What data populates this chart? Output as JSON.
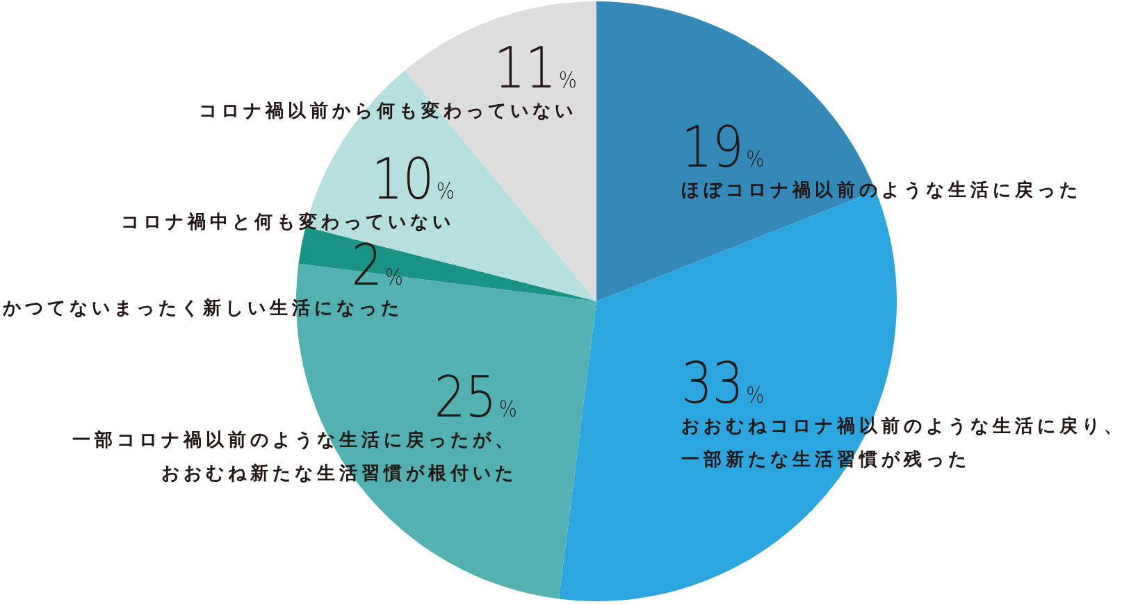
{
  "chart_data": {
    "type": "pie",
    "categories": [
      "ほぼコロナ禍以前のような生活に戻った",
      "おおむねコロナ禍以前のような生活に戻り、一部新たな生活習慣が残った",
      "一部コロナ禍以前のような生活に戻ったが、おおむね新たな生活習慣が根付いた",
      "かつてないまったく新しい生活になった",
      "コロナ禍中と何も変わっていない",
      "コロナ禍以前から何も変わっていない"
    ],
    "values": [
      19,
      33,
      25,
      2,
      10,
      11
    ],
    "colors": [
      "#3489b8",
      "#2ba6df",
      "#53b1b2",
      "#1a9585",
      "#b6dfe0",
      "#dddddd"
    ],
    "value_labels": [
      "19%",
      "33%",
      "25%",
      "2%",
      "10%",
      "11%"
    ]
  }
}
